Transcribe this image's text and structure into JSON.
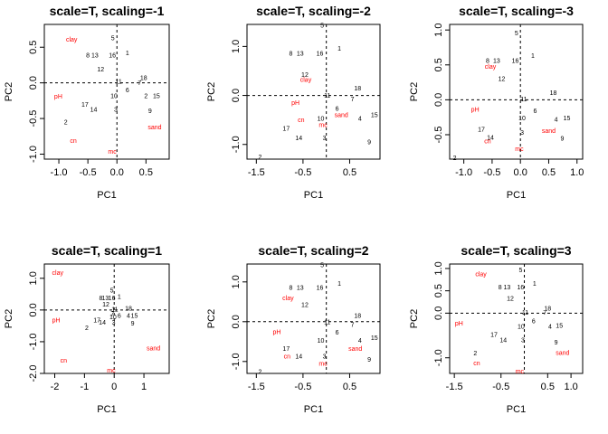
{
  "chart_data": [
    {
      "type": "scatter",
      "title": "scale=T, scaling=-1",
      "xlabel": "PC1",
      "ylabel": "PC2",
      "xlim": [
        -1.25,
        0.9
      ],
      "ylim": [
        -1.07,
        0.82
      ],
      "xticks": [
        -1.0,
        -0.5,
        0.0,
        0.5
      ],
      "yticks": [
        -1.0,
        -0.5,
        0.0,
        0.5
      ],
      "xtick_labels": [
        "-1.0",
        "-0.5",
        "0.0",
        "0.5"
      ],
      "ytick_labels": [
        "-1.0",
        "-0.5",
        "0.0",
        "0.5"
      ],
      "sites": [
        {
          "label": "5",
          "x": -0.07,
          "y": 0.63
        },
        {
          "label": "1",
          "x": 0.18,
          "y": 0.42
        },
        {
          "label": "8",
          "x": -0.5,
          "y": 0.39
        },
        {
          "label": "13",
          "x": -0.38,
          "y": 0.39
        },
        {
          "label": "16",
          "x": -0.08,
          "y": 0.39
        },
        {
          "label": "12",
          "x": -0.28,
          "y": 0.19
        },
        {
          "label": "18",
          "x": 0.46,
          "y": 0.07
        },
        {
          "label": "7",
          "x": 0.39,
          "y": 0.0
        },
        {
          "label": "11",
          "x": 0.03,
          "y": 0.02
        },
        {
          "label": "6",
          "x": 0.18,
          "y": -0.1
        },
        {
          "label": "2",
          "x": 0.5,
          "y": -0.18
        },
        {
          "label": "15",
          "x": 0.68,
          "y": -0.18
        },
        {
          "label": "10",
          "x": -0.05,
          "y": -0.18
        },
        {
          "label": "17",
          "x": -0.55,
          "y": -0.3
        },
        {
          "label": "14",
          "x": -0.4,
          "y": -0.37
        },
        {
          "label": "3",
          "x": -0.02,
          "y": -0.37
        },
        {
          "label": "9",
          "x": 0.57,
          "y": -0.39
        },
        {
          "label": "2",
          "x": -0.88,
          "y": -0.55
        }
      ],
      "variables": [
        {
          "label": "clay",
          "x": -0.78,
          "y": 0.61
        },
        {
          "label": "pH",
          "x": -1.01,
          "y": -0.19
        },
        {
          "label": "cn",
          "x": -0.75,
          "y": -0.81
        },
        {
          "label": "sand",
          "x": 0.65,
          "y": -0.62
        },
        {
          "label": "mc",
          "x": -0.08,
          "y": -0.96
        }
      ]
    },
    {
      "type": "scatter",
      "title": "scale=T, scaling=-2",
      "xlabel": "PC1",
      "ylabel": "PC2",
      "xlim": [
        -1.7,
        1.15
      ],
      "ylim": [
        -1.3,
        1.45
      ],
      "xticks": [
        -1.5,
        -0.5,
        0.5
      ],
      "yticks": [
        -1.0,
        0.0,
        1.0
      ],
      "xtick_labels": [
        "-1.5",
        "-0.5",
        "0.5"
      ],
      "ytick_labels": [
        "-1.0",
        "0.0",
        "1.0"
      ],
      "sites": [
        {
          "label": "5",
          "x": -0.09,
          "y": 1.43
        },
        {
          "label": "1",
          "x": 0.28,
          "y": 0.96
        },
        {
          "label": "8",
          "x": -0.76,
          "y": 0.86
        },
        {
          "label": "13",
          "x": -0.56,
          "y": 0.86
        },
        {
          "label": "16",
          "x": -0.14,
          "y": 0.86
        },
        {
          "label": "12",
          "x": -0.46,
          "y": 0.43
        },
        {
          "label": "18",
          "x": 0.67,
          "y": 0.15
        },
        {
          "label": "7",
          "x": 0.56,
          "y": -0.07
        },
        {
          "label": "11",
          "x": 0.02,
          "y": 0.0
        },
        {
          "label": "6",
          "x": 0.23,
          "y": -0.27
        },
        {
          "label": "4",
          "x": 0.72,
          "y": -0.47
        },
        {
          "label": "15",
          "x": 1.03,
          "y": -0.4
        },
        {
          "label": "10",
          "x": -0.12,
          "y": -0.47
        },
        {
          "label": "17",
          "x": -0.86,
          "y": -0.67
        },
        {
          "label": "14",
          "x": -0.59,
          "y": -0.87
        },
        {
          "label": "3",
          "x": -0.04,
          "y": -0.87
        },
        {
          "label": "9",
          "x": 0.92,
          "y": -0.95
        },
        {
          "label": "2",
          "x": -1.42,
          "y": -1.25
        }
      ],
      "variables": [
        {
          "label": "clay",
          "x": -0.44,
          "y": 0.32
        },
        {
          "label": "pH",
          "x": -0.66,
          "y": -0.15
        },
        {
          "label": "cn",
          "x": -0.54,
          "y": -0.5
        },
        {
          "label": "sand",
          "x": 0.32,
          "y": -0.4
        },
        {
          "label": "mc",
          "x": -0.07,
          "y": -0.6
        }
      ]
    },
    {
      "type": "scatter",
      "title": "scale=T, scaling=-3",
      "xlabel": "PC1",
      "ylabel": "PC2",
      "xlim": [
        -1.25,
        1.1
      ],
      "ylim": [
        -0.85,
        1.08
      ],
      "xticks": [
        -1.0,
        -0.5,
        0.0,
        0.5,
        1.0
      ],
      "yticks": [
        -0.5,
        0.0,
        0.5,
        1.0
      ],
      "xtick_labels": [
        "-1.0",
        "-0.5",
        "0.0",
        "0.5",
        "1.0"
      ],
      "ytick_labels": [
        "-0.5",
        "0.0",
        "0.5",
        "1.0"
      ],
      "sites": [
        {
          "label": "5",
          "x": -0.07,
          "y": 0.96
        },
        {
          "label": "1",
          "x": 0.22,
          "y": 0.63
        },
        {
          "label": "8",
          "x": -0.58,
          "y": 0.56
        },
        {
          "label": "13",
          "x": -0.42,
          "y": 0.56
        },
        {
          "label": "16",
          "x": -0.09,
          "y": 0.56
        },
        {
          "label": "12",
          "x": -0.33,
          "y": 0.3
        },
        {
          "label": "18",
          "x": 0.58,
          "y": 0.1
        },
        {
          "label": "11",
          "x": 0.06,
          "y": 0.01
        },
        {
          "label": "6",
          "x": 0.26,
          "y": -0.16
        },
        {
          "label": "4",
          "x": 0.63,
          "y": -0.28
        },
        {
          "label": "15",
          "x": 0.82,
          "y": -0.26
        },
        {
          "label": "10",
          "x": 0.03,
          "y": -0.26
        },
        {
          "label": "17",
          "x": -0.69,
          "y": -0.42
        },
        {
          "label": "14",
          "x": -0.53,
          "y": -0.54
        },
        {
          "label": "3",
          "x": 0.03,
          "y": -0.47
        },
        {
          "label": "9",
          "x": 0.74,
          "y": -0.55
        },
        {
          "label": "2",
          "x": -1.16,
          "y": -0.83
        }
      ],
      "variables": [
        {
          "label": "clay",
          "x": -0.53,
          "y": 0.48
        },
        {
          "label": "pH",
          "x": -0.8,
          "y": -0.14
        },
        {
          "label": "cn",
          "x": -0.58,
          "y": -0.59
        },
        {
          "label": "sand",
          "x": 0.5,
          "y": -0.44
        },
        {
          "label": "mc",
          "x": -0.02,
          "y": -0.7
        }
      ]
    },
    {
      "type": "scatter",
      "title": "scale=T, scaling=1",
      "xlabel": "PC1",
      "ylabel": "PC2",
      "xlim": [
        -2.35,
        1.85
      ],
      "ylim": [
        -2.0,
        1.45
      ],
      "xticks": [
        -2.0,
        -1.0,
        0.0,
        1.0
      ],
      "yticks": [
        -2.0,
        -1.0,
        0.0,
        1.0
      ],
      "xtick_labels": [
        "-2",
        "-1",
        "0",
        "1"
      ],
      "ytick_labels": [
        "-2.0",
        "-1.0",
        "0.0",
        "1.0"
      ],
      "sites": [
        {
          "label": "5",
          "x": -0.08,
          "y": 0.62
        },
        {
          "label": "8",
          "x": -0.45,
          "y": 0.38
        },
        {
          "label": "13",
          "x": -0.3,
          "y": 0.38
        },
        {
          "label": "16",
          "x": -0.08,
          "y": 0.38
        },
        {
          "label": "1",
          "x": 0.17,
          "y": 0.42
        },
        {
          "label": "12",
          "x": -0.28,
          "y": 0.18
        },
        {
          "label": "18",
          "x": 0.48,
          "y": 0.05
        },
        {
          "label": "11",
          "x": 0.02,
          "y": 0.02
        },
        {
          "label": "6",
          "x": 0.17,
          "y": -0.17
        },
        {
          "label": "4",
          "x": 0.48,
          "y": -0.17
        },
        {
          "label": "15",
          "x": 0.68,
          "y": -0.17
        },
        {
          "label": "7",
          "x": -0.06,
          "y": -0.12
        },
        {
          "label": "10",
          "x": -0.04,
          "y": -0.22
        },
        {
          "label": "17",
          "x": -0.58,
          "y": -0.32
        },
        {
          "label": "14",
          "x": -0.4,
          "y": -0.39
        },
        {
          "label": "3",
          "x": -0.02,
          "y": -0.39
        },
        {
          "label": "9",
          "x": 0.62,
          "y": -0.42
        },
        {
          "label": "2",
          "x": -0.92,
          "y": -0.56
        }
      ],
      "variables": [
        {
          "label": "clay",
          "x": -1.9,
          "y": 1.18
        },
        {
          "label": "pH",
          "x": -1.95,
          "y": -0.32
        },
        {
          "label": "cn",
          "x": -1.7,
          "y": -1.58
        },
        {
          "label": "sand",
          "x": 1.32,
          "y": -1.2
        },
        {
          "label": "mc",
          "x": -0.1,
          "y": -1.9
        }
      ]
    },
    {
      "type": "scatter",
      "title": "scale=T, scaling=2",
      "xlabel": "PC1",
      "ylabel": "PC2",
      "xlim": [
        -1.7,
        1.15
      ],
      "ylim": [
        -1.3,
        1.45
      ],
      "xticks": [
        -1.5,
        -0.5,
        0.5
      ],
      "yticks": [
        -1.0,
        0.0,
        1.0
      ],
      "xtick_labels": [
        "-1.5",
        "-0.5",
        "0.5"
      ],
      "ytick_labels": [
        "-1.0",
        "0.0",
        "1.0"
      ],
      "sites": [
        {
          "label": "5",
          "x": -0.09,
          "y": 1.43
        },
        {
          "label": "1",
          "x": 0.28,
          "y": 0.96
        },
        {
          "label": "8",
          "x": -0.76,
          "y": 0.86
        },
        {
          "label": "13",
          "x": -0.56,
          "y": 0.86
        },
        {
          "label": "16",
          "x": -0.14,
          "y": 0.86
        },
        {
          "label": "12",
          "x": -0.46,
          "y": 0.43
        },
        {
          "label": "18",
          "x": 0.67,
          "y": 0.15
        },
        {
          "label": "7",
          "x": 0.56,
          "y": -0.07
        },
        {
          "label": "11",
          "x": 0.02,
          "y": 0.0
        },
        {
          "label": "6",
          "x": 0.23,
          "y": -0.27
        },
        {
          "label": "4",
          "x": 0.72,
          "y": -0.47
        },
        {
          "label": "15",
          "x": 1.03,
          "y": -0.4
        },
        {
          "label": "10",
          "x": -0.12,
          "y": -0.47
        },
        {
          "label": "17",
          "x": -0.86,
          "y": -0.67
        },
        {
          "label": "14",
          "x": -0.59,
          "y": -0.87
        },
        {
          "label": "3",
          "x": -0.04,
          "y": -0.87
        },
        {
          "label": "9",
          "x": 0.92,
          "y": -0.95
        },
        {
          "label": "2",
          "x": -1.42,
          "y": -1.25
        }
      ],
      "variables": [
        {
          "label": "clay",
          "x": -0.82,
          "y": 0.6
        },
        {
          "label": "pH",
          "x": -1.06,
          "y": -0.26
        },
        {
          "label": "cn",
          "x": -0.84,
          "y": -0.87
        },
        {
          "label": "sand",
          "x": 0.62,
          "y": -0.67
        },
        {
          "label": "mc",
          "x": -0.07,
          "y": -1.05
        }
      ]
    },
    {
      "type": "scatter",
      "title": "scale=T, scaling=3",
      "xlabel": "PC1",
      "ylabel": "PC2",
      "xlim": [
        -1.6,
        1.25
      ],
      "ylim": [
        -1.35,
        1.1
      ],
      "xticks": [
        -1.5,
        -0.5,
        0.5,
        1.0
      ],
      "yticks": [
        -1.0,
        0.0,
        0.5,
        1.0
      ],
      "xtick_labels": [
        "-1.5",
        "-0.5",
        "0.5",
        "1.0"
      ],
      "ytick_labels": [
        "-1.0",
        "0.0",
        "0.5",
        "1.0"
      ],
      "sites": [
        {
          "label": "5",
          "x": -0.08,
          "y": 0.97
        },
        {
          "label": "1",
          "x": 0.22,
          "y": 0.66
        },
        {
          "label": "8",
          "x": -0.52,
          "y": 0.58
        },
        {
          "label": "13",
          "x": -0.37,
          "y": 0.58
        },
        {
          "label": "16",
          "x": -0.08,
          "y": 0.58
        },
        {
          "label": "12",
          "x": -0.3,
          "y": 0.33
        },
        {
          "label": "18",
          "x": 0.5,
          "y": 0.11
        },
        {
          "label": "7",
          "x": 0.44,
          "y": 0.02
        },
        {
          "label": "11",
          "x": 0.02,
          "y": 0.02
        },
        {
          "label": "6",
          "x": 0.2,
          "y": -0.18
        },
        {
          "label": "4",
          "x": 0.55,
          "y": -0.3
        },
        {
          "label": "15",
          "x": 0.75,
          "y": -0.28
        },
        {
          "label": "10",
          "x": -0.07,
          "y": -0.3
        },
        {
          "label": "17",
          "x": -0.65,
          "y": -0.48
        },
        {
          "label": "14",
          "x": -0.45,
          "y": -0.6
        },
        {
          "label": "3",
          "x": -0.03,
          "y": -0.6
        },
        {
          "label": "9",
          "x": 0.68,
          "y": -0.65
        },
        {
          "label": "2",
          "x": -1.05,
          "y": -0.89
        }
      ],
      "variables": [
        {
          "label": "clay",
          "x": -0.93,
          "y": 0.88
        },
        {
          "label": "pH",
          "x": -1.4,
          "y": -0.23
        },
        {
          "label": "cn",
          "x": -1.02,
          "y": -1.12
        },
        {
          "label": "sand",
          "x": 0.82,
          "y": -0.88
        },
        {
          "label": "mc",
          "x": -0.1,
          "y": -1.3
        }
      ]
    }
  ]
}
